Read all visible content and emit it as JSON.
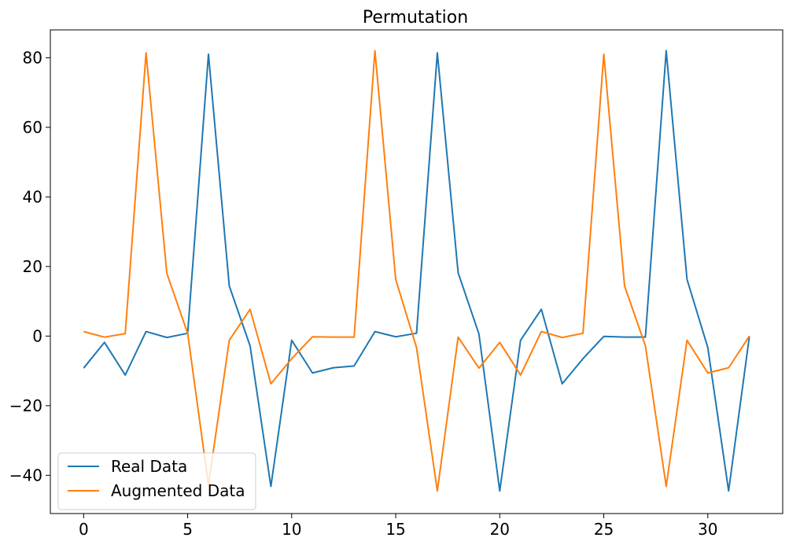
{
  "chart_data": {
    "type": "line",
    "title": "Permutation",
    "xlabel": "",
    "ylabel": "",
    "xlim": [
      -1.6,
      33.6
    ],
    "ylim": [
      -51,
      88
    ],
    "x_ticks": [
      0,
      5,
      10,
      15,
      20,
      25,
      30
    ],
    "y_ticks": [
      -40,
      -20,
      0,
      20,
      40,
      60,
      80
    ],
    "x_tick_labels": [
      "0",
      "5",
      "10",
      "15",
      "20",
      "25",
      "30"
    ],
    "y_tick_labels": [
      "−40",
      "−20",
      "0",
      "20",
      "40",
      "60",
      "80"
    ],
    "grid": false,
    "legend_position": "lower-left",
    "x": [
      0,
      1,
      2,
      3,
      4,
      5,
      6,
      7,
      8,
      9,
      10,
      11,
      12,
      13,
      14,
      15,
      16,
      17,
      18,
      19,
      20,
      21,
      22,
      23,
      24,
      25,
      26,
      27,
      28,
      29,
      30,
      31,
      32
    ],
    "series": [
      {
        "name": "Real Data",
        "color": "#1f77b4",
        "values": [
          -9.2,
          -1.8,
          -11.2,
          1.3,
          -0.4,
          0.8,
          81.0,
          14.4,
          -2.8,
          -43.2,
          -1.2,
          -10.6,
          -9.1,
          -8.6,
          1.3,
          -0.2,
          0.8,
          81.4,
          18.2,
          0.6,
          -44.5,
          -1.2,
          7.7,
          -13.7,
          -6.5,
          -0.1,
          -0.3,
          -0.3,
          82.0,
          16.3,
          -3.3,
          -44.5,
          0.0
        ]
      },
      {
        "name": "Augmented Data",
        "color": "#ff7f0e",
        "values": [
          1.3,
          -0.3,
          0.7,
          81.4,
          18.0,
          0.8,
          -42.8,
          -1.2,
          7.7,
          -13.7,
          -6.5,
          -0.2,
          -0.3,
          -0.3,
          82.0,
          16.3,
          -3.3,
          -44.5,
          -0.3,
          -9.2,
          -1.8,
          -11.2,
          1.3,
          -0.4,
          0.8,
          81.0,
          14.4,
          -2.8,
          -43.2,
          -1.2,
          -10.6,
          -9.1,
          0.0
        ]
      }
    ]
  }
}
